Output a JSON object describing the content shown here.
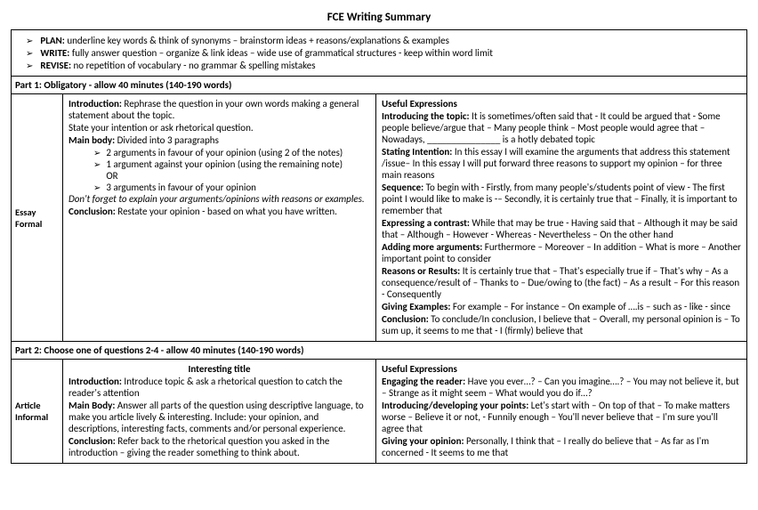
{
  "title": "FCE Writing Summary",
  "plan": {
    "items": [
      {
        "label": "PLAN:",
        "text": "underline key words & think of synonyms – brainstorm ideas + reasons/explanations & examples"
      },
      {
        "label": "WRITE:",
        "text": "fully answer question – organize & link ideas – wide use of grammatical structures - keep within word limit"
      },
      {
        "label": "REVISE:",
        "text": "no repetition of vocabulary - no grammar & spelling mistakes"
      }
    ]
  },
  "part1": {
    "header": "Part 1: Obligatory - allow 40 minutes (140-190 words)",
    "labelTop": "Essay",
    "labelBottom": "Formal",
    "left": {
      "intro_label": "Introduction:",
      "intro_text": " Rephrase the question in your own words making a general statement about the topic.",
      "intro_text2": "State your intention or ask rhetorical question.",
      "mainbody_label": "Main body:",
      "mainbody_text": " Divided into 3 paragraphs",
      "bullets": [
        "2 arguments in favour of your opinion (using 2 of the  notes)",
        "1 argument against your opinion (using the remaining note)",
        "OR",
        "3 arguments in favour of your opinion"
      ],
      "dont_forget": "Don't forget to explain your arguments/opinions with reasons or examples.",
      "conclusion_label": "Conclusion:",
      "conclusion_text": " Restate your opinion - based on what you have written."
    },
    "right": {
      "useful_title": "Useful Expressions",
      "topic_label": "Introducing the topic:",
      "topic_text": " It is sometimes/often said that  - It could be argued that - Some people believe/argue that – Many people think – Most people would agree that – Nowadays, _______________ is a hotly debated topic",
      "intent_label": "Stating Intention:",
      "intent_text": " In this essay I will examine the arguments that address this statement /issue– In this essay I will put forward three reasons to support my opinion – for three main reasons",
      "seq_label": "Sequence:",
      "seq_text": " To begin with - Firstly, from many people's/students point of view - The first point I would like to make is -– Secondly, it is certainly true that – Finally, it is important to remember that",
      "contrast_label": "Expressing a contrast:",
      "contrast_text": " While that may be true - Having said that – Although it may be said that – Although – However - Whereas  - Nevertheless – On the other hand",
      "adding_label": "Adding more arguments:",
      "adding_text": " Furthermore – Moreover – In addition – What is more – Another important point to consider",
      "reasons_label": "Reasons or Results:",
      "reasons_text": " It is certainly true that – That's especially true if – That's why – As a consequence/result of – Thanks to – Due/owing to (the fact) – As a result – For this reason - Consequently",
      "examples_label": "Giving Examples:",
      "examples_text": " For example – For instance – On example of ….is – such as - like  - since",
      "concl_label": "Conclusion:",
      "concl_text": " To conclude/In conclusion, I believe that – Overall, my personal opinion is – To sum up, it seems to me that - I (firmly) believe that"
    }
  },
  "part2": {
    "header": "Part 2: Choose one of questions 2-4 - allow 40 minutes (140-190 words)",
    "labelTop": "Article",
    "labelBottom": "Informal",
    "left": {
      "interesting": "Interesting title",
      "intro_label": "Introduction:",
      "intro_text": " Introduce topic  & ask a rhetorical question to catch the reader's attention",
      "mainbody_label": "Main Body:",
      "mainbody_text": " Answer all parts of the question using descriptive language, to make you article lively & interesting. Include: your opinion, and descriptions, interesting facts, comments and/or personal experience.",
      "conclusion_label": "Conclusion:",
      "conclusion_text": " Refer back to the rhetorical question you asked in the introduction – giving the reader something to think about."
    },
    "right": {
      "useful_title": "Useful Expressions",
      "engage_label": "Engaging the reader:",
      "engage_text": " Have you ever…? – Can you imagine….? – You may not believe it, but – Strange as it might seem – What would you do if…?",
      "develop_label": "Introducing/developing your points:",
      "develop_text": " Let's start with – On top of that – To make matters worse – Believe it or not, - Funnily enough – You'll never believe that – I'm sure you'll agree that",
      "opinion_label": "Giving your opinion:",
      "opinion_text": " Personally, I think that – I really do believe that – As far as I'm concerned - It seems to me that"
    }
  }
}
